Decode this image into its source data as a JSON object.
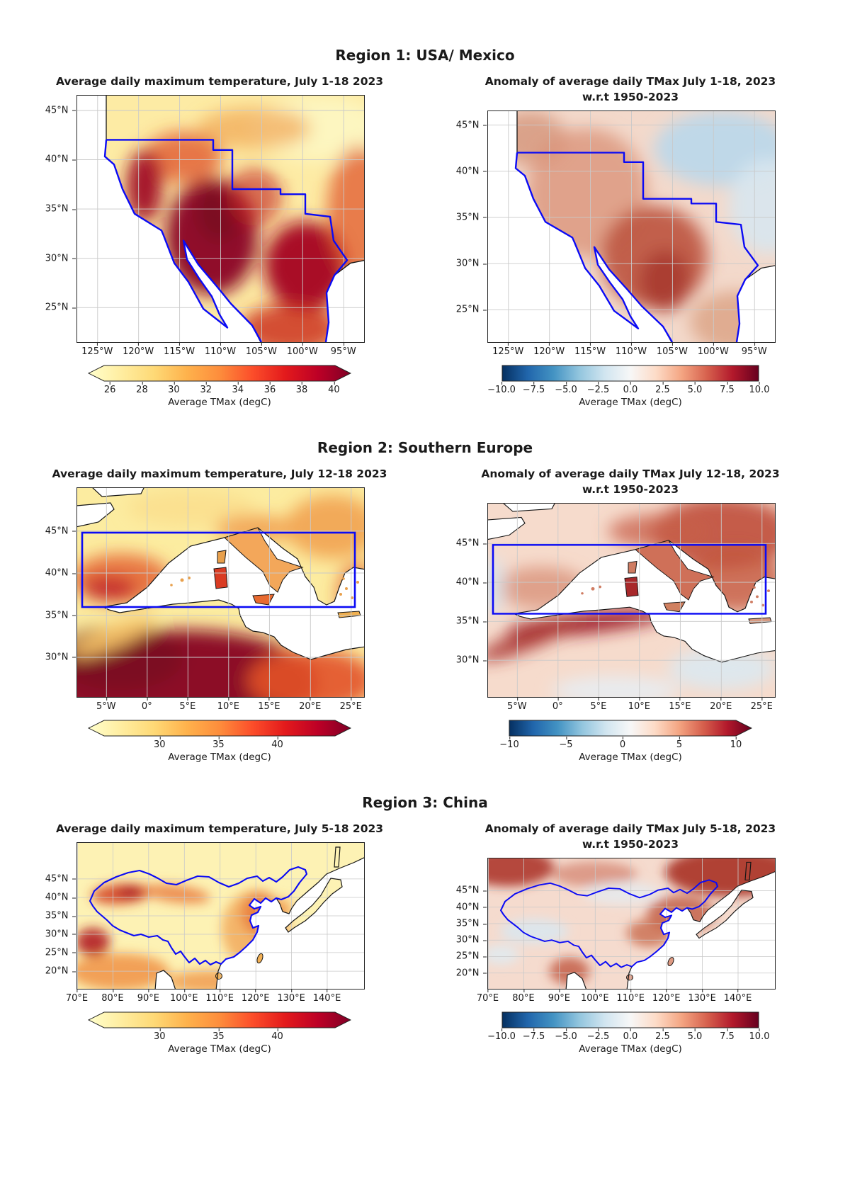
{
  "figure": {
    "background": "#ffffff",
    "colors": {
      "region_outline": "#0a0af5",
      "coastline": "#151515",
      "gridline": "#c9c9c9",
      "colormap_tmax": [
        "#ffffcc",
        "#ffeda0",
        "#fed976",
        "#feb24c",
        "#fd8d3c",
        "#fc4e2a",
        "#e31a1c",
        "#bd0026",
        "#800026"
      ],
      "colormap_anomaly": [
        "#053061",
        "#2166ac",
        "#4393c3",
        "#92c5de",
        "#d1e5f0",
        "#f7f7f7",
        "#fddbc7",
        "#f4a582",
        "#d6604d",
        "#b2182b",
        "#67001f"
      ]
    },
    "sections": [
      {
        "title": "Region 1: USA/ Mexico",
        "panels": [
          {
            "title": "Average daily maximum temperature, July 1-18 2023",
            "title2": "",
            "y_ticks": [
              "45°N",
              "40°N",
              "35°N",
              "30°N",
              "25°N"
            ],
            "x_ticks": [
              "125°W",
              "120°W",
              "115°W",
              "110°W",
              "105°W",
              "100°W",
              "95°W"
            ],
            "colorbar": {
              "ticks": [
                "26",
                "28",
                "30",
                "32",
                "34",
                "36",
                "38",
                "40"
              ],
              "label": "Average TMax (degC)"
            }
          },
          {
            "title": "Anomaly of average daily TMax July 1-18, 2023",
            "title2": "w.r.t 1950-2023",
            "y_ticks": [
              "45°N",
              "40°N",
              "35°N",
              "30°N",
              "25°N"
            ],
            "x_ticks": [
              "125°W",
              "120°W",
              "115°W",
              "110°W",
              "105°W",
              "100°W",
              "95°W"
            ],
            "colorbar": {
              "ticks": [
                "−10.0",
                "−7.5",
                "−5.0",
                "−2.5",
                "0.0",
                "2.5",
                "5.0",
                "7.5",
                "10.0"
              ],
              "label": "Average TMax (degC)"
            }
          }
        ]
      },
      {
        "title": "Region 2: Southern Europe",
        "panels": [
          {
            "title": "Average daily maximum temperature, July 12-18 2023",
            "title2": "",
            "y_ticks": [
              "45°N",
              "40°N",
              "35°N",
              "30°N"
            ],
            "x_ticks": [
              "5°W",
              "0°",
              "5°E",
              "10°E",
              "15°E",
              "20°E",
              "25°E"
            ],
            "colorbar": {
              "ticks": [
                "30",
                "35",
                "40"
              ],
              "label": "Average TMax (degC)"
            }
          },
          {
            "title": "Anomaly of average daily TMax July 12-18, 2023",
            "title2": "w.r.t 1950-2023",
            "y_ticks": [
              "45°N",
              "40°N",
              "35°N",
              "30°N"
            ],
            "x_ticks": [
              "5°W",
              "0°",
              "5°E",
              "10°E",
              "15°E",
              "20°E",
              "25°E"
            ],
            "colorbar": {
              "ticks": [
                "−10",
                "−5",
                "0",
                "5",
                "10"
              ],
              "label": "Average TMax (degC)"
            }
          }
        ]
      },
      {
        "title": "Region 3: China",
        "panels": [
          {
            "title": "Average daily maximum temperature, July 5-18 2023",
            "title2": "",
            "y_ticks": [
              "45°N",
              "40°N",
              "35°N",
              "30°N",
              "25°N",
              "20°N"
            ],
            "x_ticks": [
              "70°E",
              "80°E",
              "90°E",
              "100°E",
              "110°E",
              "120°E",
              "130°E",
              "140°E"
            ],
            "colorbar": {
              "ticks": [
                "30",
                "35",
                "40"
              ],
              "label": "Average TMax (degC)"
            }
          },
          {
            "title": "Anomaly of average daily TMax July 5-18, 2023",
            "title2": "w.r.t 1950-2023",
            "y_ticks": [
              "45°N",
              "40°N",
              "35°N",
              "30°N",
              "25°N",
              "20°N"
            ],
            "x_ticks": [
              "70°E",
              "80°E",
              "90°E",
              "100°E",
              "110°E",
              "120°E",
              "130°E",
              "140°E"
            ],
            "colorbar": {
              "ticks": [
                "−10.0",
                "−7.5",
                "−5.0",
                "−2.5",
                "0.0",
                "2.5",
                "5.0",
                "7.5",
                "10.0"
              ],
              "label": "Average TMax (degC)"
            }
          }
        ]
      }
    ]
  },
  "chart_data": [
    {
      "panel": "region1-left",
      "type": "heatmap",
      "subtype": "geographic lat-lon map",
      "region": "USA / Mexico",
      "title": "Average daily maximum temperature, July 1-18 2023",
      "lon_range": [
        "127.5°W",
        "92.5°W"
      ],
      "lat_range": [
        "21.5°N",
        "46.5°N"
      ],
      "lon_ticks": [
        "125°W",
        "120°W",
        "115°W",
        "110°W",
        "105°W",
        "100°W",
        "95°W"
      ],
      "lat_ticks": [
        "45°N",
        "40°N",
        "35°N",
        "30°N",
        "25°N"
      ],
      "colormap": "YlOrRd",
      "colorbar": {
        "label": "Average TMax (degC)",
        "ticks": [
          26,
          28,
          30,
          32,
          34,
          36,
          38,
          40
        ],
        "extend": "both"
      },
      "highlights": [
        "TMax above 40 degC over the Arizona-Sonora desert, interior southern California, central Texas and northern Mexico",
        "mildest values (about 26-28 degC) along the Pacific Northwest coast and the northern plains",
        "blue polygon outlines the south-western USA / Mexico study region"
      ]
    },
    {
      "panel": "region1-right",
      "type": "heatmap",
      "subtype": "geographic lat-lon map",
      "region": "USA / Mexico",
      "title": "Anomaly of average daily TMax July 1-18, 2023 w.r.t 1950-2023",
      "lon_range": [
        "127.5°W",
        "92.5°W"
      ],
      "lat_range": [
        "21.5°N",
        "46.5°N"
      ],
      "lon_ticks": [
        "125°W",
        "120°W",
        "115°W",
        "110°W",
        "105°W",
        "100°W",
        "95°W"
      ],
      "lat_ticks": [
        "45°N",
        "40°N",
        "35°N",
        "30°N",
        "25°N"
      ],
      "colormap": "RdBu_r",
      "colorbar": {
        "label": "Average TMax (degC)",
        "ticks": [
          -10.0,
          -7.5,
          -5.0,
          -2.5,
          0.0,
          2.5,
          5.0,
          7.5,
          10.0
        ],
        "extend": "neither"
      },
      "highlights": [
        "warm anomalies up to about +5 degC centred on New Mexico, Chihuahua and western Texas",
        "weak cool anomalies (about -1 to -2 degC) over the north-central USA",
        "reference period 1950-2023"
      ]
    },
    {
      "panel": "region2-left",
      "type": "heatmap",
      "subtype": "geographic lat-lon map",
      "region": "Southern Europe / Mediterranean",
      "title": "Average daily maximum temperature, July 12-18 2023",
      "lon_range": [
        "8.6°W",
        "26.6°E"
      ],
      "lat_range": [
        "25.3°N",
        "50.1°N"
      ],
      "lon_ticks": [
        "5°W",
        "0°",
        "5°E",
        "10°E",
        "15°E",
        "20°E",
        "25°E"
      ],
      "lat_ticks": [
        "45°N",
        "40°N",
        "35°N",
        "30°N"
      ],
      "colormap": "YlOrRd",
      "colorbar": {
        "label": "Average TMax (degC)",
        "ticks": [
          30,
          35,
          40
        ],
        "extend": "both"
      },
      "highlights": [
        "TMax well above 40 degC across the Sahara in North Africa and hot interior southern Spain",
        "sea areas shown in white",
        "blue rectangle marks the Mediterranean study box (about 8°W-25.5°E, 36°N-44.8°N)"
      ]
    },
    {
      "panel": "region2-right",
      "type": "heatmap",
      "subtype": "geographic lat-lon map",
      "region": "Southern Europe / Mediterranean",
      "title": "Anomaly of average daily TMax July 12-18, 2023 w.r.t 1950-2023",
      "lon_range": [
        "8.6°W",
        "26.6°E"
      ],
      "lat_range": [
        "25.3°N",
        "50.1°N"
      ],
      "lon_ticks": [
        "5°W",
        "0°",
        "5°E",
        "10°E",
        "15°E",
        "20°E",
        "25°E"
      ],
      "lat_ticks": [
        "45°N",
        "40°N",
        "35°N",
        "30°N"
      ],
      "colormap": "RdBu_r",
      "colorbar": {
        "label": "Average TMax (degC)",
        "ticks": [
          -10,
          -5,
          0,
          5,
          10
        ],
        "extend": "max"
      },
      "highlights": [
        "warm anomalies of +4 to +8 degC over northern Italy, the Balkans and Greece",
        "strong warm anomaly band along the Algerian-Tunisian coast and a dark-red spot on Sardinia",
        "near-normal to slightly cool conditions over parts of the far south-east of the domain"
      ]
    },
    {
      "panel": "region3-left",
      "type": "heatmap",
      "subtype": "geographic lat-lon map",
      "region": "China / East Asia",
      "title": "Average daily maximum temperature, July 5-18 2023",
      "lon_range": [
        "70°E",
        "150.3°E"
      ],
      "lat_range": [
        "15.2°N",
        "54.8°N"
      ],
      "lon_ticks": [
        "70°E",
        "80°E",
        "90°E",
        "100°E",
        "110°E",
        "120°E",
        "130°E",
        "140°E"
      ],
      "lat_ticks": [
        "45°N",
        "40°N",
        "35°N",
        "30°N",
        "25°N",
        "20°N"
      ],
      "colormap": "YlOrRd",
      "colorbar": {
        "label": "Average TMax (degC)",
        "ticks": [
          30,
          35,
          40
        ],
        "extend": "both"
      },
      "highlights": [
        "hottest areas (above 40 degC) in the Tarim Basin of Xinjiang and over north-west India / Pakistan",
        "warm (about 35 degC) eastern China lowlands; cooler pale Tibetan Plateau",
        "blue outline follows the China national boundary"
      ]
    },
    {
      "panel": "region3-right",
      "type": "heatmap",
      "subtype": "geographic lat-lon map",
      "region": "China / East Asia",
      "title": "Anomaly of average daily TMax July 5-18, 2023 w.r.t 1950-2023",
      "lon_range": [
        "70°E",
        "150.3°E"
      ],
      "lat_range": [
        "15.2°N",
        "54.8°N"
      ],
      "lon_ticks": [
        "70°E",
        "80°E",
        "90°E",
        "100°E",
        "110°E",
        "120°E",
        "130°E",
        "140°E"
      ],
      "lat_ticks": [
        "45°N",
        "40°N",
        "35°N",
        "30°N",
        "25°N",
        "20°N"
      ],
      "colormap": "RdBu_r",
      "colorbar": {
        "label": "Average TMax (degC)",
        "ticks": [
          -10.0,
          -7.5,
          -5.0,
          -2.5,
          0.0,
          2.5,
          5.0,
          7.5,
          10.0
        ],
        "extend": "neither"
      },
      "highlights": [
        "warm anomalies up to about +6 degC over Siberia at the top of the map and over north-east China",
        "slight cool anomalies over the western Tibetan Plateau",
        "reference period 1950-2023"
      ]
    }
  ]
}
